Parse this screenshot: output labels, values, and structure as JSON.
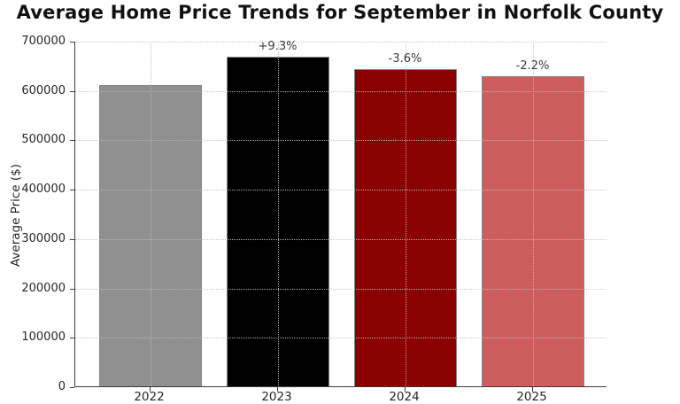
{
  "title": "Average Home Price Trends for September in Norfolk County",
  "chart_data": {
    "type": "bar",
    "title": "Average Home Price Trends for September in Norfolk County",
    "categories": [
      "2022",
      "2023",
      "2024",
      "2025"
    ],
    "values": [
      610000,
      667000,
      643000,
      629000
    ],
    "bar_labels": [
      "",
      "+9.3%",
      "-3.6%",
      "-2.2%"
    ],
    "bar_colors": [
      "#909090",
      "#000000",
      "#8b0000",
      "#cd5c5c"
    ],
    "xlabel": "",
    "ylabel": "Average Price ($)",
    "ylim": [
      0,
      700000
    ],
    "yticks": [
      0,
      100000,
      200000,
      300000,
      400000,
      500000,
      600000,
      700000
    ],
    "grid": "dotted, drawn above bars, horizontal and vertical",
    "legend": "none"
  }
}
